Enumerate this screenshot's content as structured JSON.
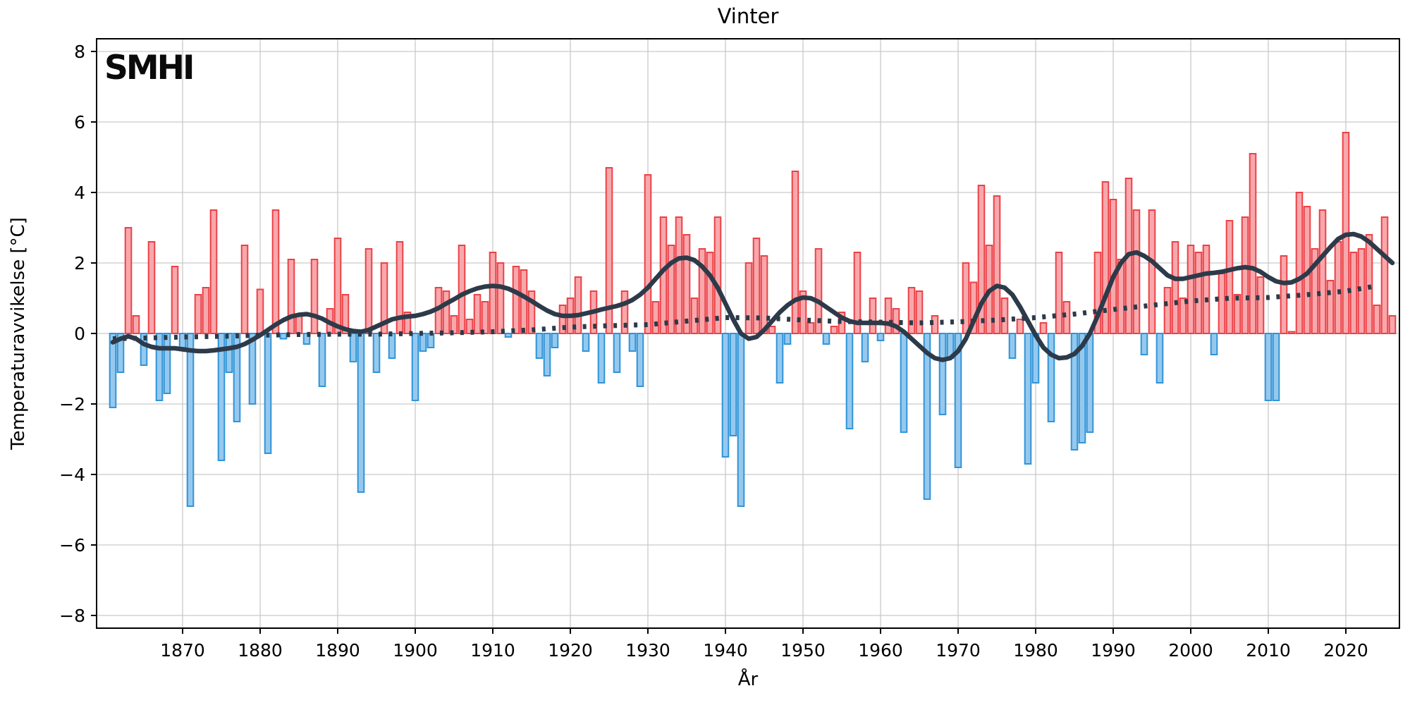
{
  "title": "Vinter",
  "logo": "SMHI",
  "axes": {
    "xlabel": "År",
    "ylabel": "Temperaturavvikelse [°C]",
    "yticks": [
      -8,
      -6,
      -4,
      -2,
      0,
      2,
      4,
      6,
      8
    ],
    "xticks": [
      1870,
      1880,
      1890,
      1900,
      1910,
      1920,
      1930,
      1940,
      1950,
      1960,
      1970,
      1980,
      1990,
      2000,
      2010,
      2020
    ],
    "grid": true
  },
  "colors": {
    "warm_fill": "#f8a8ac",
    "warm_stroke": "#ec4147",
    "cold_fill": "#96c8ee",
    "cold_stroke": "#3094d8",
    "smooth_line": "#2c3a49",
    "trend_line": "#2c3a49",
    "grid_line": "#c9c9c9",
    "spine": "#000000"
  },
  "chart_data": {
    "type": "bar",
    "title": "Vinter",
    "xlabel": "År",
    "ylabel": "Temperaturavvikelse [°C]",
    "ylim": [
      -8.4,
      8.4
    ],
    "xlim": [
      1858.9,
      2026.9
    ],
    "legend_position": "none",
    "start_year": 1861,
    "bar_values": [
      -2.1,
      -1.1,
      3.0,
      0.5,
      -0.9,
      2.6,
      -1.9,
      -1.7,
      1.9,
      -0.4,
      -4.9,
      1.1,
      1.3,
      3.5,
      -3.6,
      -1.1,
      -2.5,
      2.5,
      -2.0,
      1.25,
      -3.4,
      3.5,
      -0.15,
      2.1,
      0.5,
      -0.3,
      2.1,
      -1.5,
      0.7,
      2.7,
      1.1,
      -0.8,
      -4.5,
      2.4,
      -1.1,
      2.0,
      -0.7,
      2.6,
      0.6,
      -1.9,
      -0.5,
      -0.4,
      1.3,
      1.2,
      0.5,
      2.5,
      0.4,
      1.1,
      0.9,
      2.3,
      2.0,
      -0.1,
      1.9,
      1.8,
      1.2,
      -0.7,
      -1.2,
      -0.4,
      0.8,
      1.0,
      1.6,
      -0.5,
      1.2,
      -1.4,
      4.7,
      -1.1,
      1.2,
      -0.5,
      -1.5,
      4.5,
      0.9,
      3.3,
      2.5,
      3.3,
      2.8,
      1.0,
      2.4,
      2.3,
      3.3,
      -3.5,
      -2.9,
      -4.9,
      2.0,
      2.7,
      2.2,
      0.2,
      -1.4,
      -0.3,
      4.6,
      1.2,
      0.3,
      2.4,
      -0.3,
      0.2,
      0.6,
      -2.7,
      2.3,
      -0.8,
      1.0,
      -0.2,
      1.0,
      0.7,
      -2.8,
      1.3,
      1.2,
      -4.7,
      0.5,
      -2.3,
      -0.7,
      -3.8,
      2.0,
      1.45,
      4.2,
      2.5,
      3.9,
      1.0,
      -0.7,
      0.4,
      -3.7,
      -1.4,
      0.3,
      -2.5,
      2.3,
      0.9,
      -3.3,
      -3.1,
      -2.8,
      2.3,
      4.3,
      3.8,
      2.1,
      4.4,
      3.5,
      -0.6,
      3.5,
      -1.4,
      1.3,
      2.6,
      1.0,
      2.5,
      2.3,
      2.5,
      -0.6,
      1.7,
      3.2,
      1.1,
      3.3,
      5.1,
      1.6,
      -1.9,
      -1.9,
      2.2,
      0.05,
      4.0,
      3.6,
      2.4,
      3.5,
      1.5,
      2.6,
      5.7,
      2.3,
      2.4,
      2.8,
      0.8,
      3.3,
      0.5
    ],
    "smoothed_series": [
      [
        1861,
        -0.25
      ],
      [
        1862,
        -0.15
      ],
      [
        1863,
        -0.08
      ],
      [
        1864,
        -0.15
      ],
      [
        1865,
        -0.3
      ],
      [
        1866,
        -0.38
      ],
      [
        1867,
        -0.42
      ],
      [
        1868,
        -0.42
      ],
      [
        1869,
        -0.42
      ],
      [
        1870,
        -0.45
      ],
      [
        1871,
        -0.48
      ],
      [
        1872,
        -0.5
      ],
      [
        1873,
        -0.5
      ],
      [
        1874,
        -0.48
      ],
      [
        1875,
        -0.45
      ],
      [
        1876,
        -0.42
      ],
      [
        1877,
        -0.38
      ],
      [
        1878,
        -0.3
      ],
      [
        1879,
        -0.18
      ],
      [
        1880,
        -0.05
      ],
      [
        1881,
        0.1
      ],
      [
        1882,
        0.25
      ],
      [
        1883,
        0.38
      ],
      [
        1884,
        0.48
      ],
      [
        1885,
        0.53
      ],
      [
        1886,
        0.55
      ],
      [
        1887,
        0.5
      ],
      [
        1888,
        0.42
      ],
      [
        1889,
        0.3
      ],
      [
        1890,
        0.2
      ],
      [
        1891,
        0.12
      ],
      [
        1892,
        0.07
      ],
      [
        1893,
        0.05
      ],
      [
        1894,
        0.1
      ],
      [
        1895,
        0.2
      ],
      [
        1896,
        0.3
      ],
      [
        1897,
        0.4
      ],
      [
        1898,
        0.45
      ],
      [
        1899,
        0.48
      ],
      [
        1900,
        0.5
      ],
      [
        1901,
        0.55
      ],
      [
        1902,
        0.62
      ],
      [
        1903,
        0.72
      ],
      [
        1904,
        0.85
      ],
      [
        1905,
        0.97
      ],
      [
        1906,
        1.1
      ],
      [
        1907,
        1.2
      ],
      [
        1908,
        1.28
      ],
      [
        1909,
        1.33
      ],
      [
        1910,
        1.35
      ],
      [
        1911,
        1.33
      ],
      [
        1912,
        1.27
      ],
      [
        1913,
        1.17
      ],
      [
        1914,
        1.05
      ],
      [
        1915,
        0.92
      ],
      [
        1916,
        0.78
      ],
      [
        1917,
        0.65
      ],
      [
        1918,
        0.55
      ],
      [
        1919,
        0.5
      ],
      [
        1920,
        0.5
      ],
      [
        1921,
        0.52
      ],
      [
        1922,
        0.57
      ],
      [
        1923,
        0.62
      ],
      [
        1924,
        0.68
      ],
      [
        1925,
        0.73
      ],
      [
        1926,
        0.78
      ],
      [
        1927,
        0.85
      ],
      [
        1928,
        0.95
      ],
      [
        1929,
        1.1
      ],
      [
        1930,
        1.3
      ],
      [
        1931,
        1.55
      ],
      [
        1932,
        1.8
      ],
      [
        1933,
        2.0
      ],
      [
        1934,
        2.13
      ],
      [
        1935,
        2.15
      ],
      [
        1936,
        2.08
      ],
      [
        1937,
        1.9
      ],
      [
        1938,
        1.65
      ],
      [
        1939,
        1.3
      ],
      [
        1940,
        0.85
      ],
      [
        1941,
        0.4
      ],
      [
        1942,
        0.0
      ],
      [
        1943,
        -0.15
      ],
      [
        1944,
        -0.1
      ],
      [
        1945,
        0.1
      ],
      [
        1946,
        0.35
      ],
      [
        1947,
        0.6
      ],
      [
        1948,
        0.8
      ],
      [
        1949,
        0.95
      ],
      [
        1950,
        1.02
      ],
      [
        1951,
        1.0
      ],
      [
        1952,
        0.9
      ],
      [
        1953,
        0.75
      ],
      [
        1954,
        0.6
      ],
      [
        1955,
        0.45
      ],
      [
        1956,
        0.35
      ],
      [
        1957,
        0.3
      ],
      [
        1958,
        0.3
      ],
      [
        1959,
        0.3
      ],
      [
        1960,
        0.3
      ],
      [
        1961,
        0.28
      ],
      [
        1962,
        0.2
      ],
      [
        1963,
        0.05
      ],
      [
        1964,
        -0.15
      ],
      [
        1965,
        -0.35
      ],
      [
        1966,
        -0.55
      ],
      [
        1967,
        -0.7
      ],
      [
        1968,
        -0.75
      ],
      [
        1969,
        -0.7
      ],
      [
        1970,
        -0.5
      ],
      [
        1971,
        -0.15
      ],
      [
        1972,
        0.35
      ],
      [
        1973,
        0.85
      ],
      [
        1974,
        1.2
      ],
      [
        1975,
        1.35
      ],
      [
        1976,
        1.3
      ],
      [
        1977,
        1.1
      ],
      [
        1978,
        0.75
      ],
      [
        1979,
        0.35
      ],
      [
        1980,
        -0.05
      ],
      [
        1981,
        -0.4
      ],
      [
        1982,
        -0.6
      ],
      [
        1983,
        -0.7
      ],
      [
        1984,
        -0.68
      ],
      [
        1985,
        -0.58
      ],
      [
        1986,
        -0.35
      ],
      [
        1987,
        0.0
      ],
      [
        1988,
        0.5
      ],
      [
        1989,
        1.05
      ],
      [
        1990,
        1.6
      ],
      [
        1991,
        2.0
      ],
      [
        1992,
        2.25
      ],
      [
        1993,
        2.3
      ],
      [
        1994,
        2.2
      ],
      [
        1995,
        2.05
      ],
      [
        1996,
        1.85
      ],
      [
        1997,
        1.65
      ],
      [
        1998,
        1.55
      ],
      [
        1999,
        1.55
      ],
      [
        2000,
        1.6
      ],
      [
        2001,
        1.65
      ],
      [
        2002,
        1.7
      ],
      [
        2003,
        1.72
      ],
      [
        2004,
        1.75
      ],
      [
        2005,
        1.8
      ],
      [
        2006,
        1.85
      ],
      [
        2007,
        1.88
      ],
      [
        2008,
        1.85
      ],
      [
        2009,
        1.75
      ],
      [
        2010,
        1.6
      ],
      [
        2011,
        1.48
      ],
      [
        2012,
        1.43
      ],
      [
        2013,
        1.45
      ],
      [
        2014,
        1.55
      ],
      [
        2015,
        1.7
      ],
      [
        2016,
        1.95
      ],
      [
        2017,
        2.2
      ],
      [
        2018,
        2.45
      ],
      [
        2019,
        2.68
      ],
      [
        2020,
        2.8
      ],
      [
        2021,
        2.82
      ],
      [
        2022,
        2.75
      ],
      [
        2023,
        2.6
      ],
      [
        2024,
        2.4
      ],
      [
        2025,
        2.2
      ],
      [
        2026,
        2.0
      ]
    ],
    "trend_series": [
      [
        1861,
        -0.15
      ],
      [
        1865,
        -0.13
      ],
      [
        1870,
        -0.1
      ],
      [
        1875,
        -0.08
      ],
      [
        1880,
        -0.05
      ],
      [
        1885,
        -0.03
      ],
      [
        1890,
        -0.02
      ],
      [
        1895,
        -0.02
      ],
      [
        1900,
        0.0
      ],
      [
        1905,
        0.02
      ],
      [
        1910,
        0.05
      ],
      [
        1915,
        0.1
      ],
      [
        1920,
        0.18
      ],
      [
        1925,
        0.22
      ],
      [
        1930,
        0.25
      ],
      [
        1935,
        0.35
      ],
      [
        1940,
        0.45
      ],
      [
        1945,
        0.44
      ],
      [
        1950,
        0.38
      ],
      [
        1955,
        0.34
      ],
      [
        1960,
        0.32
      ],
      [
        1965,
        0.3
      ],
      [
        1970,
        0.33
      ],
      [
        1975,
        0.38
      ],
      [
        1980,
        0.45
      ],
      [
        1985,
        0.55
      ],
      [
        1990,
        0.68
      ],
      [
        1995,
        0.8
      ],
      [
        2000,
        0.92
      ],
      [
        2005,
        1.0
      ],
      [
        2010,
        1.02
      ],
      [
        2015,
        1.1
      ],
      [
        2020,
        1.2
      ],
      [
        2024,
        1.35
      ]
    ]
  }
}
